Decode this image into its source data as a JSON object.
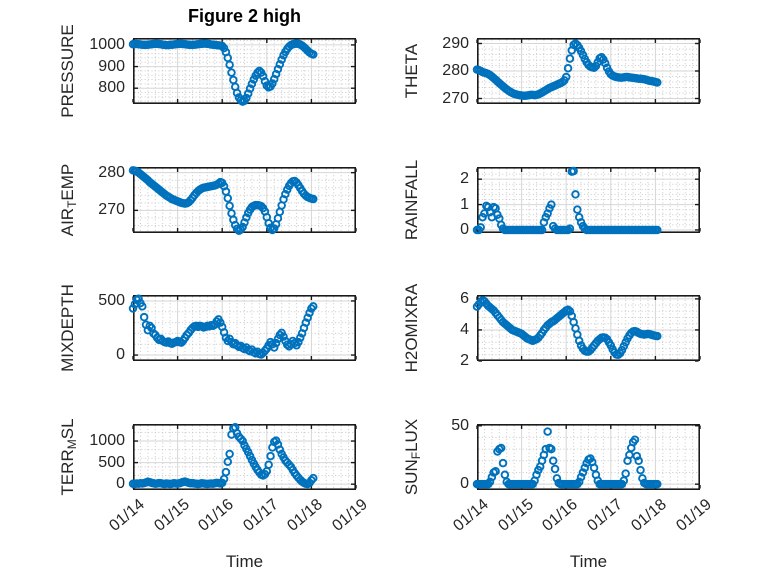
{
  "chart_data": {
    "type": "scatter",
    "title": "Figure 2 high",
    "grid": {
      "rows": 4,
      "cols": 2,
      "grid_on": true,
      "minor_grid_on": true
    },
    "marker": "o",
    "marker_color": "#0072BD",
    "x_axis": {
      "label": "Time",
      "lim": [
        0,
        5
      ],
      "ticks": [
        0,
        1,
        2,
        3,
        4,
        5
      ],
      "tick_labels": [
        "01/14",
        "01/15",
        "01/16",
        "01/17",
        "01/18",
        "01/19"
      ],
      "minor_step_days": 0.1666667,
      "data_start": 0,
      "data_step_days": 0.0416667
    },
    "subplots": [
      {
        "name": "PRESSURE",
        "ylabel_parts": [
          {
            "t": "PRESSURE"
          }
        ],
        "ylim": [
          727,
          1032
        ],
        "yticks": [
          800,
          900,
          1000
        ],
        "y_minor": 20,
        "values": [
          1003,
          1004,
          1004,
          1003,
          1002,
          1001,
          1000,
          1000,
          1001,
          1002,
          1003,
          1004,
          1005,
          1005,
          1004,
          1003,
          1001,
          1000,
          999,
          999,
          1000,
          1001,
          1002,
          1003,
          1004,
          1005,
          1005,
          1004,
          1003,
          1002,
          1001,
          1000,
          1000,
          1001,
          1002,
          1003,
          1004,
          1005,
          1006,
          1006,
          1005,
          1004,
          1002,
          1001,
          1000,
          999,
          998,
          997,
          995,
          985,
          967,
          940,
          908,
          872,
          838,
          806,
          778,
          757,
          744,
          738,
          742,
          755,
          775,
          798,
          820,
          840,
          858,
          872,
          880,
          872,
          855,
          832,
          812,
          804,
          808,
          822,
          842,
          865,
          888,
          910,
          932,
          952,
          968,
          982,
          992,
          999,
          1003,
          1005,
          1006,
          1005,
          1002,
          997,
          990,
          982,
          973,
          965,
          959,
          956
        ]
      },
      {
        "name": "THETA",
        "ylabel_parts": [
          {
            "t": "THETA"
          }
        ],
        "ylim": [
          268,
          292
        ],
        "yticks": [
          270,
          280,
          290
        ],
        "y_minor": 2,
        "values": [
          280.5,
          280.3,
          280,
          279.6,
          279.4,
          279.2,
          278.9,
          278.5,
          278,
          277.4,
          276.8,
          276.2,
          275.6,
          275,
          274.4,
          273.8,
          273.3,
          272.8,
          272.4,
          272,
          271.7,
          271.5,
          271.3,
          271.2,
          271.1,
          271,
          271,
          271.1,
          271.2,
          271.3,
          271.3,
          271.2,
          271.3,
          271.5,
          271.8,
          272.2,
          272.6,
          273,
          273.4,
          273.8,
          274.1,
          274.4,
          274.7,
          275,
          275.3,
          275.6,
          276,
          276.6,
          277.8,
          281,
          284.5,
          287.5,
          289.5,
          290,
          289.4,
          288.4,
          287.2,
          285.8,
          284.4,
          283.2,
          282.2,
          281.6,
          281.3,
          281.2,
          281.8,
          283.2,
          284.6,
          285,
          284.2,
          282.8,
          281.2,
          279.8,
          278.8,
          278.3,
          278,
          277.8,
          277.7,
          277.6,
          277.6,
          277.7,
          277.8,
          277.8,
          277.7,
          277.6,
          277.5,
          277.4,
          277.3,
          277.2,
          277.2,
          277.1,
          277,
          276.8,
          276.6,
          276.4,
          276.3,
          276.2,
          276,
          275.8
        ]
      },
      {
        "name": "AIR_TEMP",
        "ylabel_parts": [
          {
            "t": "AIR"
          },
          {
            "t": "T",
            "sub": true
          },
          {
            "t": "EMP"
          }
        ],
        "ylim": [
          264,
          281.5
        ],
        "yticks": [
          270,
          280
        ],
        "y_minor": 2,
        "values": [
          280.6,
          280.5,
          280.3,
          280,
          279.6,
          279.2,
          278.8,
          278.4,
          278,
          277.5,
          277.1,
          276.7,
          276.3,
          275.9,
          275.5,
          275.1,
          274.7,
          274.3,
          273.9,
          273.6,
          273.3,
          273,
          272.8,
          272.6,
          272.4,
          272.2,
          272,
          271.9,
          271.8,
          271.9,
          272.2,
          272.7,
          273.3,
          274,
          274.6,
          275.1,
          275.5,
          275.8,
          276,
          276.1,
          276.2,
          276.3,
          276.4,
          276.5,
          276.6,
          276.8,
          277.1,
          277.5,
          277.3,
          276.4,
          275,
          273.2,
          271.2,
          269.2,
          267.5,
          266.1,
          265.1,
          264.6,
          264.9,
          265.6,
          266.8,
          268.1,
          269.3,
          270.2,
          270.9,
          271.2,
          271.4,
          271.4,
          271.3,
          271.1,
          270.6,
          269.7,
          268.2,
          266.6,
          265.4,
          264.8,
          265.2,
          266.3,
          267.9,
          269.6,
          271.3,
          272.9,
          274.3,
          275.5,
          276.5,
          277.2,
          277.7,
          277.8,
          277.4,
          276.7,
          275.9,
          275.1,
          274.4,
          273.9,
          273.5,
          273.3,
          273.1,
          273
        ]
      },
      {
        "name": "RAINFALL",
        "ylabel_parts": [
          {
            "t": "RAINFALL"
          }
        ],
        "ylim": [
          -0.12,
          2.48
        ],
        "yticks": [
          0,
          1,
          2
        ],
        "y_minor": 0.2,
        "values": [
          0,
          0,
          0.1,
          0.5,
          0.65,
          0.95,
          0.9,
          0.7,
          0.5,
          0.9,
          0.85,
          0.6,
          0.45,
          0.2,
          0.05,
          0,
          0,
          0,
          0,
          0,
          0,
          0,
          0,
          0,
          0,
          0,
          0,
          0,
          0,
          0,
          0,
          0,
          0,
          0,
          0,
          0,
          0.3,
          0.5,
          0.65,
          0.85,
          1,
          0.15,
          0.05,
          0,
          0,
          0,
          0,
          0,
          0,
          0,
          0.05,
          2.3,
          2.32,
          1.4,
          0.8,
          0.5,
          0.3,
          0.15,
          0.05,
          0,
          0,
          0,
          0,
          0,
          0,
          0,
          0,
          0,
          0,
          0,
          0,
          0,
          0,
          0,
          0,
          0,
          0,
          0,
          0,
          0,
          0,
          0,
          0,
          0,
          0,
          0,
          0,
          0,
          0,
          0,
          0,
          0,
          0,
          0,
          0,
          0,
          0,
          0
        ]
      },
      {
        "name": "MIXDEPTH",
        "ylabel_parts": [
          {
            "t": "MIXDEPTH"
          }
        ],
        "ylim": [
          -55,
          555
        ],
        "yticks": [
          0,
          500
        ],
        "y_minor": 100,
        "values": [
          430,
          470,
          510,
          520,
          480,
          450,
          350,
          280,
          230,
          270,
          250,
          200,
          185,
          160,
          140,
          150,
          130,
          120,
          115,
          125,
          110,
          105,
          115,
          120,
          130,
          120,
          115,
          135,
          160,
          185,
          205,
          230,
          250,
          265,
          270,
          260,
          270,
          265,
          255,
          260,
          270,
          265,
          275,
          270,
          280,
          310,
          330,
          300,
          260,
          210,
          160,
          130,
          150,
          120,
          100,
          110,
          90,
          75,
          85,
          65,
          55,
          70,
          45,
          35,
          50,
          25,
          15,
          30,
          10,
          5,
          20,
          40,
          60,
          90,
          120,
          100,
          70,
          110,
          150,
          185,
          205,
          170,
          130,
          95,
          80,
          100,
          130,
          110,
          90,
          120,
          160,
          200,
          250,
          300,
          345,
          390,
          430,
          450
        ]
      },
      {
        "name": "H2OMIXRA",
        "ylabel_parts": [
          {
            "t": "H2OMIXRA"
          }
        ],
        "ylim": [
          2,
          6.25
        ],
        "yticks": [
          2,
          4,
          6
        ],
        "y_minor": 0.4,
        "values": [
          5.5,
          5.65,
          5.8,
          5.9,
          5.85,
          5.7,
          5.55,
          5.45,
          5.35,
          5.25,
          5.1,
          4.95,
          4.8,
          4.65,
          4.5,
          4.4,
          4.3,
          4.2,
          4.1,
          4,
          3.95,
          3.9,
          3.85,
          3.8,
          3.75,
          3.65,
          3.55,
          3.45,
          3.4,
          3.35,
          3.3,
          3.35,
          3.4,
          3.5,
          3.65,
          3.8,
          4,
          4.15,
          4.3,
          4.4,
          4.5,
          4.55,
          4.65,
          4.75,
          4.85,
          4.95,
          5.05,
          5.15,
          5.25,
          5.3,
          5.2,
          4.9,
          4.5,
          4.1,
          3.7,
          3.3,
          3,
          2.8,
          2.65,
          2.6,
          2.6,
          2.7,
          2.85,
          3,
          3.15,
          3.3,
          3.4,
          3.5,
          3.52,
          3.5,
          3.4,
          3.2,
          3,
          2.75,
          2.55,
          2.42,
          2.4,
          2.5,
          2.7,
          2.95,
          3.2,
          3.45,
          3.65,
          3.8,
          3.9,
          3.92,
          3.88,
          3.8,
          3.75,
          3.72,
          3.7,
          3.72,
          3.75,
          3.72,
          3.68,
          3.65,
          3.62,
          3.6
        ]
      },
      {
        "name": "TERR_MSL",
        "ylabel_parts": [
          {
            "t": "TERR"
          },
          {
            "t": "M",
            "sub": true
          },
          {
            "t": "SL"
          }
        ],
        "ylim": [
          -135,
          1395
        ],
        "yticks": [
          0,
          500,
          1000
        ],
        "y_minor": 200,
        "values": [
          10,
          5,
          15,
          10,
          20,
          15,
          25,
          40,
          55,
          45,
          30,
          20,
          10,
          15,
          25,
          20,
          10,
          5,
          15,
          10,
          5,
          10,
          20,
          15,
          10,
          20,
          35,
          50,
          60,
          45,
          30,
          20,
          25,
          15,
          10,
          5,
          10,
          20,
          15,
          10,
          5,
          10,
          15,
          10,
          20,
          30,
          25,
          15,
          30,
          120,
          280,
          520,
          700,
          1150,
          1290,
          1320,
          1180,
          1100,
          1050,
          1000,
          900,
          820,
          740,
          650,
          560,
          480,
          400,
          330,
          270,
          220,
          200,
          230,
          300,
          450,
          650,
          850,
          980,
          1010,
          920,
          800,
          700,
          620,
          550,
          500,
          450,
          400,
          330,
          260,
          200,
          150,
          100,
          60,
          30,
          10,
          5,
          30,
          90,
          140
        ]
      },
      {
        "name": "SUN_FLUX",
        "ylabel_parts": [
          {
            "t": "SUN"
          },
          {
            "t": "F",
            "sub": true
          },
          {
            "t": "LUX"
          }
        ],
        "ylim": [
          -5,
          51.5
        ],
        "yticks": [
          0,
          50
        ],
        "y_minor": 10,
        "values": [
          0,
          0,
          0,
          0,
          0,
          0,
          0,
          2,
          6,
          10,
          11,
          28,
          30,
          31,
          18,
          8,
          2,
          0,
          0,
          0,
          0,
          0,
          0,
          0,
          0,
          0,
          0,
          0,
          0,
          0,
          0,
          3,
          8,
          12,
          15,
          20,
          25,
          30,
          45,
          31,
          30,
          20,
          13,
          5,
          1,
          0,
          0,
          0,
          0,
          0,
          0,
          0,
          0,
          0,
          0,
          2,
          6,
          10,
          14,
          18,
          21,
          22,
          19,
          14,
          8,
          3,
          0,
          0,
          0,
          0,
          0,
          0,
          0,
          0,
          0,
          0,
          0,
          0,
          0,
          3,
          9,
          20,
          25,
          31,
          36,
          38,
          24,
          20,
          12,
          5,
          1,
          0,
          0,
          0,
          0,
          0,
          0,
          0
        ]
      }
    ]
  }
}
